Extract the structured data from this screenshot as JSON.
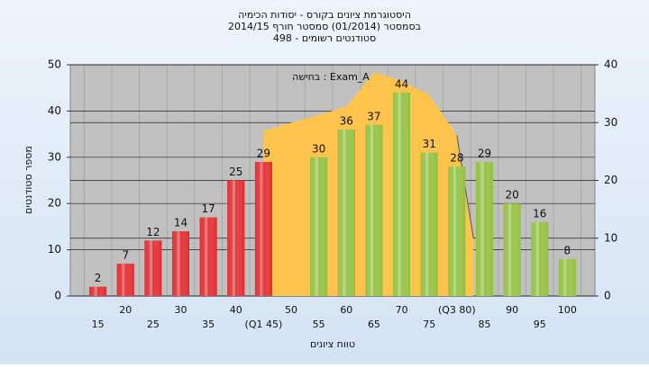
{
  "chart_data": {
    "type": "bar",
    "title": [
      "היסטוגרמת ציונים בקורס - יסודות הכימיה",
      "בסמסטר (01/2014) סמסטר חורף 2014/15",
      "סטודנטים רשומים - 498"
    ],
    "annotation": "בחישה : Exam_A",
    "x_label": "טווח ציונים",
    "y_label": "מספר סטודנטים",
    "categories": [
      "15",
      "20",
      "25",
      "30",
      "35",
      "40",
      "(Q1 45)",
      "50",
      "55",
      "60",
      "65",
      "70",
      "75",
      "(Q3 80)",
      "85",
      "90",
      "95",
      "100"
    ],
    "category_x": [
      15,
      20,
      25,
      30,
      35,
      40,
      45,
      50,
      55,
      60,
      65,
      70,
      75,
      80,
      85,
      90,
      95,
      100
    ],
    "values": [
      2,
      7,
      12,
      14,
      17,
      25,
      29,
      null,
      30,
      36,
      37,
      44,
      31,
      28,
      29,
      20,
      16,
      8
    ],
    "colors": [
      "#e0262a",
      "#e0262a",
      "#e0262a",
      "#e0262a",
      "#e0262a",
      "#e0262a",
      "#e0262a",
      "#e0262a",
      "#8fbf3a",
      "#8fbf3a",
      "#8fbf3a",
      "#8fbf3a",
      "#8fbf3a",
      "#8fbf3a",
      "#8fbf3a",
      "#8fbf3a",
      "#8fbf3a",
      "#8fbf3a"
    ],
    "ylim": [
      0,
      50
    ],
    "yticks": [
      0,
      10,
      20,
      30,
      40,
      50
    ],
    "y2lim": [
      0,
      40
    ],
    "y2ticks": [
      0,
      10,
      20,
      30,
      40
    ],
    "area": {
      "color": "#ffc44d",
      "axis": "y2",
      "x": [
        45,
        50,
        55,
        60,
        65,
        70,
        75,
        80,
        83
      ],
      "values": [
        28.6,
        30,
        31.3,
        32.8,
        38.7,
        37.2,
        34.8,
        27.8,
        10
      ]
    },
    "grid": true
  }
}
